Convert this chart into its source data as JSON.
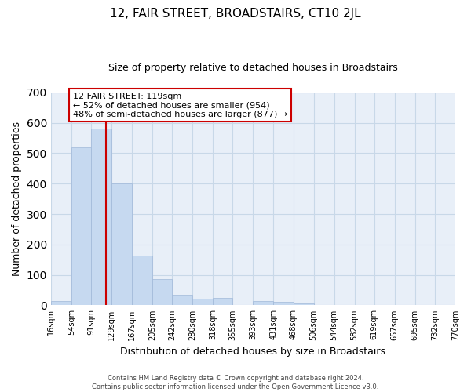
{
  "title": "12, FAIR STREET, BROADSTAIRS, CT10 2JL",
  "subtitle": "Size of property relative to detached houses in Broadstairs",
  "xlabel": "Distribution of detached houses by size in Broadstairs",
  "ylabel": "Number of detached properties",
  "bin_edges": [
    16,
    54,
    91,
    129,
    167,
    205,
    242,
    280,
    318,
    355,
    393,
    431,
    468,
    506,
    544,
    582,
    619,
    657,
    695,
    732,
    770
  ],
  "bar_heights": [
    15,
    520,
    580,
    400,
    163,
    85,
    35,
    22,
    25,
    0,
    13,
    12,
    5,
    0,
    0,
    0,
    0,
    0,
    0,
    0
  ],
  "bar_color": "#c6d9f0",
  "bar_edge_color": "#a0b8d8",
  "vline_x": 119,
  "vline_color": "#cc0000",
  "ylim": [
    0,
    700
  ],
  "yticks": [
    0,
    100,
    200,
    300,
    400,
    500,
    600,
    700
  ],
  "annotation_title": "12 FAIR STREET: 119sqm",
  "annotation_line1": "← 52% of detached houses are smaller (954)",
  "annotation_line2": "48% of semi-detached houses are larger (877) →",
  "annotation_box_color": "#ffffff",
  "annotation_box_edge": "#cc0000",
  "tick_labels": [
    "16sqm",
    "54sqm",
    "91sqm",
    "129sqm",
    "167sqm",
    "205sqm",
    "242sqm",
    "280sqm",
    "318sqm",
    "355sqm",
    "393sqm",
    "431sqm",
    "468sqm",
    "506sqm",
    "544sqm",
    "582sqm",
    "619sqm",
    "657sqm",
    "695sqm",
    "732sqm",
    "770sqm"
  ],
  "footer1": "Contains HM Land Registry data © Crown copyright and database right 2024.",
  "footer2": "Contains public sector information licensed under the Open Government Licence v3.0.",
  "grid_color": "#c8d8e8",
  "background_color": "#e8eff8",
  "title_fontsize": 11,
  "subtitle_fontsize": 9,
  "ylabel_fontsize": 9,
  "xlabel_fontsize": 9
}
